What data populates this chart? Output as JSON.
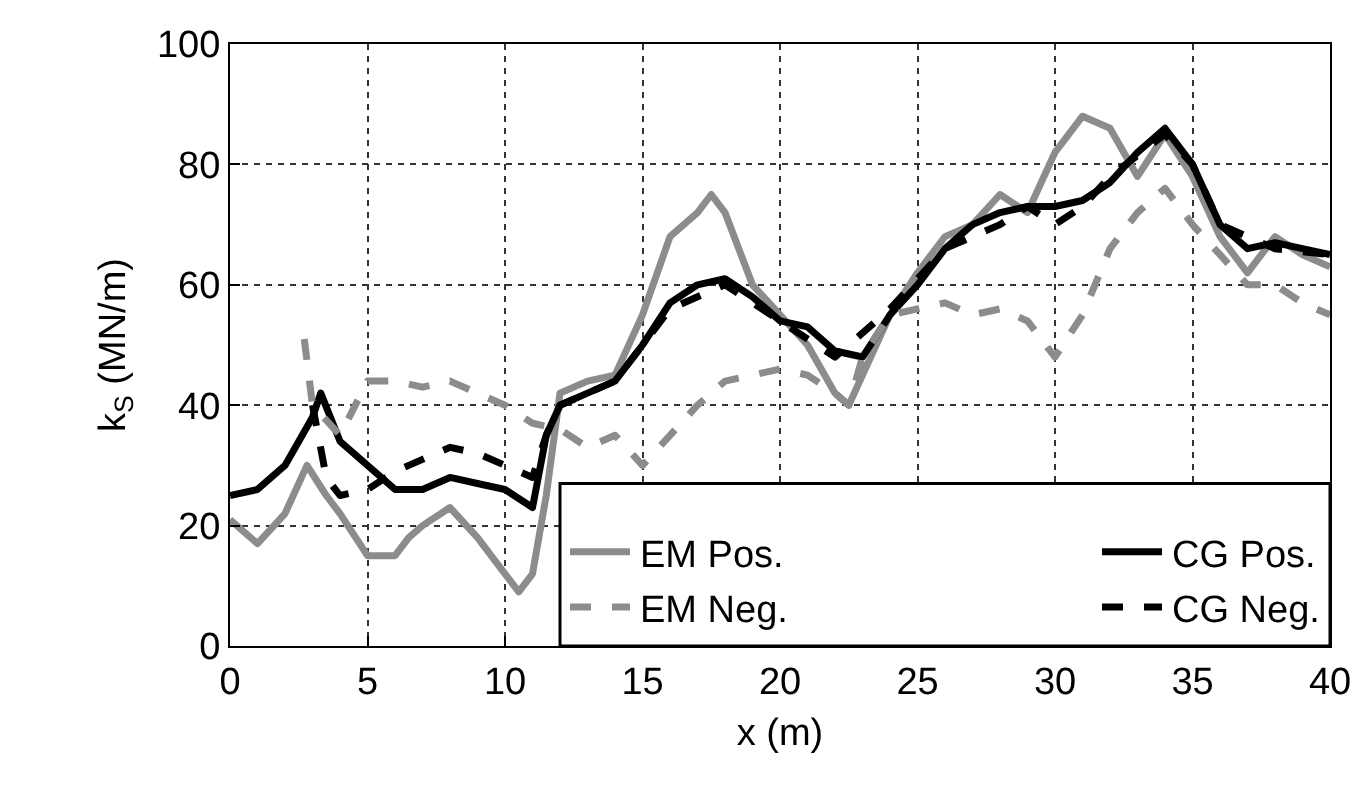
{
  "chart_data": {
    "type": "line",
    "xlabel": "x (m)",
    "ylabel": "k$_{S}$ (MN/m)",
    "xlim": [
      0,
      40
    ],
    "xticks": [
      0,
      5,
      10,
      15,
      20,
      25,
      30,
      35,
      40
    ],
    "ylim": [
      0,
      100
    ],
    "yticks": [
      0,
      20,
      40,
      60,
      80,
      100
    ],
    "grid": true,
    "legend": "bottom right",
    "marker": "none",
    "series": [
      {
        "name": "EM Pos.",
        "color": "#8c8c8c",
        "line_style": "solid",
        "x": [
          0,
          1,
          2,
          2.8,
          3.5,
          4,
          5,
          6,
          6.5,
          7,
          8,
          9,
          10,
          10.5,
          11,
          11.5,
          12,
          13,
          14,
          15,
          16,
          17,
          17.5,
          18,
          19,
          20,
          21,
          22,
          22.5,
          23,
          24,
          25,
          26,
          27,
          28,
          29,
          30,
          31,
          32,
          33,
          34,
          35,
          36,
          37,
          38,
          39,
          40
        ],
        "values": [
          21,
          17,
          22,
          30,
          25,
          22,
          15,
          15,
          18,
          20,
          23,
          18,
          12,
          9,
          12,
          25,
          42,
          44,
          45,
          55,
          68,
          72,
          75,
          72,
          60,
          55,
          50,
          42,
          40,
          45,
          55,
          62,
          68,
          70,
          75,
          72,
          82,
          88,
          86,
          78,
          85,
          78,
          68,
          62,
          68,
          65,
          63
        ]
      },
      {
        "name": "CG Pos.",
        "color": "#000000",
        "line_style": "solid",
        "x": [
          0,
          1,
          2,
          3,
          3.3,
          4,
          5,
          6,
          7,
          8,
          9,
          10,
          11,
          11.5,
          12,
          13,
          14,
          15,
          16,
          17,
          18,
          19,
          20,
          21,
          22,
          23,
          24,
          25,
          26,
          27,
          28,
          29,
          30,
          31,
          32,
          33,
          34,
          35,
          36,
          37,
          38,
          39,
          40
        ],
        "values": [
          25,
          26,
          30,
          38,
          42,
          34,
          30,
          26,
          26,
          28,
          27,
          26,
          23,
          35,
          40,
          42,
          44,
          50,
          57,
          60,
          61,
          58,
          54,
          53,
          49,
          48,
          55,
          60,
          66,
          70,
          72,
          73,
          73,
          74,
          77,
          82,
          86,
          80,
          70,
          66,
          67,
          66,
          65
        ]
      },
      {
        "name": "EM Neg.",
        "color": "#8c8c8c",
        "line_style": "dashed",
        "x": [
          2.7,
          3,
          4,
          5,
          6,
          7,
          8,
          9,
          10,
          11,
          12,
          13,
          14,
          15,
          16,
          17,
          18,
          19,
          20,
          21,
          22,
          22.5,
          23,
          24,
          25,
          26,
          27,
          28,
          29,
          30,
          31,
          32,
          33,
          34,
          35,
          36,
          37,
          38,
          39,
          40
        ],
        "values": [
          51,
          40,
          35,
          44,
          44,
          43,
          44,
          42,
          40,
          37,
          36,
          33,
          35,
          30,
          35,
          40,
          44,
          45,
          46,
          45,
          42,
          40,
          48,
          55,
          56,
          57,
          55,
          56,
          54,
          48,
          55,
          66,
          72,
          76,
          70,
          65,
          60,
          60,
          57,
          55
        ]
      },
      {
        "name": "CG Neg.",
        "color": "#000000",
        "line_style": "dashed",
        "x": [
          3,
          3.5,
          4,
          5,
          6,
          7,
          8,
          9,
          10,
          11,
          11.5,
          12,
          14,
          16,
          18,
          20,
          22,
          24,
          26,
          28,
          29,
          30,
          31,
          32,
          34,
          35,
          36,
          38,
          40
        ],
        "values": [
          40,
          28,
          25,
          26,
          29,
          31,
          33,
          32,
          30,
          28,
          35,
          40,
          44,
          56,
          60,
          54,
          48,
          56,
          66,
          70,
          73,
          70,
          73,
          78,
          85,
          80,
          70,
          66,
          65
        ]
      }
    ]
  }
}
